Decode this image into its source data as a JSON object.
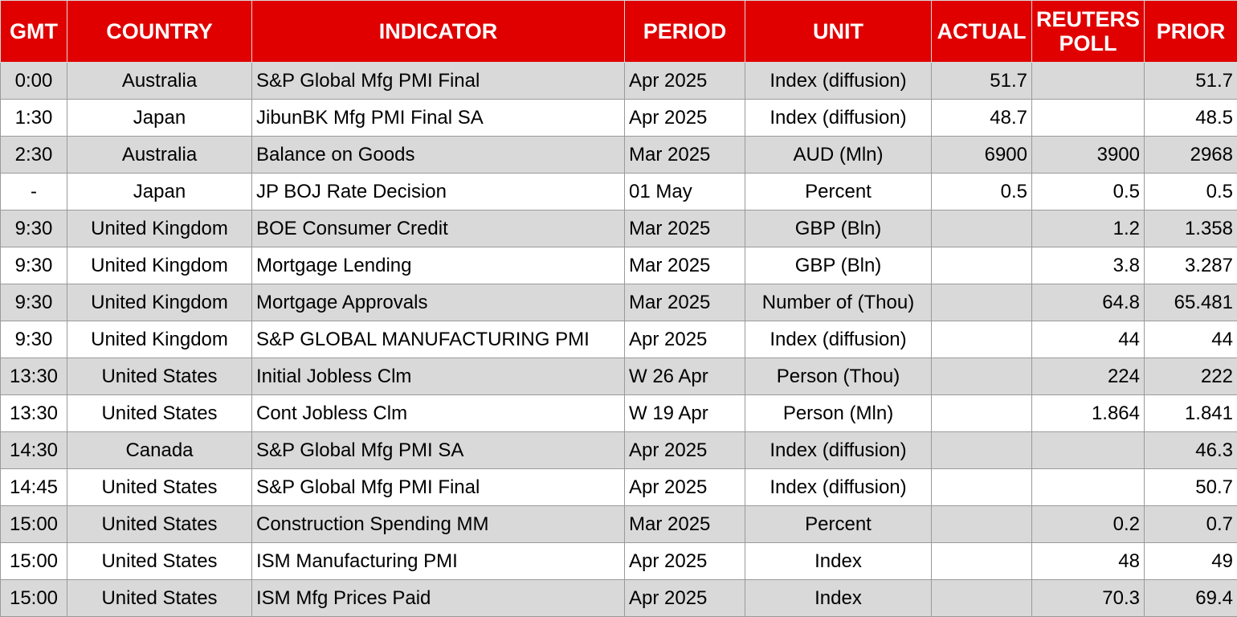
{
  "headers": {
    "gmt": "GMT",
    "country": "COUNTRY",
    "indicator": "INDICATOR",
    "period": "PERIOD",
    "unit": "UNIT",
    "actual": "ACTUAL",
    "poll_line1": "REUTERS",
    "poll_line2": "POLL",
    "prior": "PRIOR"
  },
  "colors": {
    "header_bg": "#e00000",
    "header_text": "#ffffff",
    "row_shade": "#d9d9d9",
    "row_plain": "#ffffff"
  },
  "rows": [
    {
      "gmt": "0:00",
      "country": "Australia",
      "indicator": "S&P Global Mfg PMI Final",
      "period": "Apr 2025",
      "unit": "Index (diffusion)",
      "actual": "51.7",
      "poll": "",
      "prior": "51.7"
    },
    {
      "gmt": "1:30",
      "country": "Japan",
      "indicator": "JibunBK Mfg PMI Final SA",
      "period": "Apr 2025",
      "unit": "Index (diffusion)",
      "actual": "48.7",
      "poll": "",
      "prior": "48.5"
    },
    {
      "gmt": "2:30",
      "country": "Australia",
      "indicator": "Balance on Goods",
      "period": "Mar 2025",
      "unit": "AUD (Mln)",
      "actual": "6900",
      "poll": "3900",
      "prior": "2968"
    },
    {
      "gmt": "-",
      "country": "Japan",
      "indicator": "JP BOJ Rate Decision",
      "period": "01 May",
      "unit": "Percent",
      "actual": "0.5",
      "poll": "0.5",
      "prior": "0.5"
    },
    {
      "gmt": "9:30",
      "country": "United Kingdom",
      "indicator": "BOE Consumer Credit",
      "period": "Mar 2025",
      "unit": "GBP (Bln)",
      "actual": "",
      "poll": "1.2",
      "prior": "1.358"
    },
    {
      "gmt": "9:30",
      "country": "United Kingdom",
      "indicator": "Mortgage Lending",
      "period": "Mar 2025",
      "unit": "GBP (Bln)",
      "actual": "",
      "poll": "3.8",
      "prior": "3.287"
    },
    {
      "gmt": "9:30",
      "country": "United Kingdom",
      "indicator": "Mortgage Approvals",
      "period": "Mar 2025",
      "unit": "Number of (Thou)",
      "actual": "",
      "poll": "64.8",
      "prior": "65.481"
    },
    {
      "gmt": "9:30",
      "country": "United Kingdom",
      "indicator": "S&P GLOBAL MANUFACTURING PMI",
      "period": "Apr 2025",
      "unit": "Index (diffusion)",
      "actual": "",
      "poll": "44",
      "prior": "44"
    },
    {
      "gmt": "13:30",
      "country": "United States",
      "indicator": "Initial Jobless Clm",
      "period": "W 26 Apr",
      "unit": "Person (Thou)",
      "actual": "",
      "poll": "224",
      "prior": "222"
    },
    {
      "gmt": "13:30",
      "country": "United States",
      "indicator": "Cont Jobless Clm",
      "period": "W 19 Apr",
      "unit": "Person (Mln)",
      "actual": "",
      "poll": "1.864",
      "prior": "1.841"
    },
    {
      "gmt": "14:30",
      "country": "Canada",
      "indicator": "S&P Global Mfg PMI SA",
      "period": "Apr 2025",
      "unit": "Index (diffusion)",
      "actual": "",
      "poll": "",
      "prior": "46.3"
    },
    {
      "gmt": "14:45",
      "country": "United States",
      "indicator": "S&P Global Mfg PMI Final",
      "period": "Apr 2025",
      "unit": "Index (diffusion)",
      "actual": "",
      "poll": "",
      "prior": "50.7"
    },
    {
      "gmt": "15:00",
      "country": "United States",
      "indicator": "Construction Spending MM",
      "period": "Mar 2025",
      "unit": "Percent",
      "actual": "",
      "poll": "0.2",
      "prior": "0.7"
    },
    {
      "gmt": "15:00",
      "country": "United States",
      "indicator": "ISM Manufacturing PMI",
      "period": "Apr 2025",
      "unit": "Index",
      "actual": "",
      "poll": "48",
      "prior": "49"
    },
    {
      "gmt": "15:00",
      "country": "United States",
      "indicator": "ISM Mfg Prices Paid",
      "period": "Apr 2025",
      "unit": "Index",
      "actual": "",
      "poll": "70.3",
      "prior": "69.4"
    }
  ]
}
